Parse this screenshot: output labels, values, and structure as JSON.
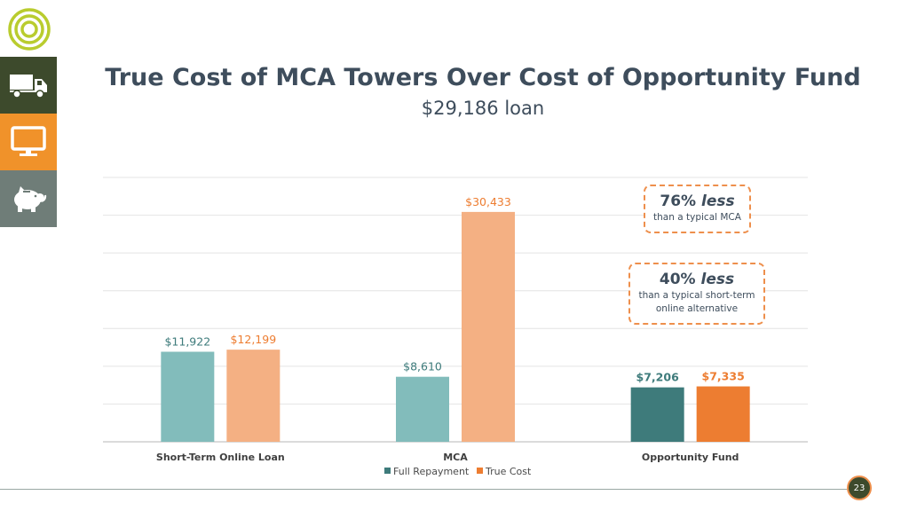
{
  "page": {
    "number": "23"
  },
  "colors": {
    "full_repayment": "#82bcbb",
    "true_cost": "#f4b083",
    "full_repayment_highlight": "#3e7b7b",
    "true_cost_highlight": "#ed7d31",
    "title": "#3e4d5c",
    "callout_border": "#ee8f4c"
  },
  "callouts": {
    "mca": {
      "percent": "76%",
      "emph": "less",
      "text": "than a typical MCA"
    },
    "online": {
      "percent": "40%",
      "emph": "less",
      "line1": "than a typical short-term",
      "line2": "online alternative"
    }
  },
  "chart_data": {
    "type": "bar",
    "title": "True Cost of MCA Towers Over Cost of Opportunity Fund",
    "subtitle": "$29,186 loan",
    "categories": [
      "Short-Term Online Loan",
      "MCA",
      "Opportunity Fund"
    ],
    "series": [
      {
        "name": "Full Repayment",
        "values": [
          11922,
          8610,
          7206
        ],
        "labels": [
          "$11,922",
          "$8,610",
          "$7,206"
        ]
      },
      {
        "name": "True Cost",
        "values": [
          12199,
          30433,
          7335
        ],
        "labels": [
          "$12,199",
          "$30,433",
          "$7,335"
        ]
      }
    ],
    "highlight_category": "Opportunity Fund",
    "ylim": [
      0,
      35000
    ],
    "grid": true,
    "legend": "bottom"
  }
}
